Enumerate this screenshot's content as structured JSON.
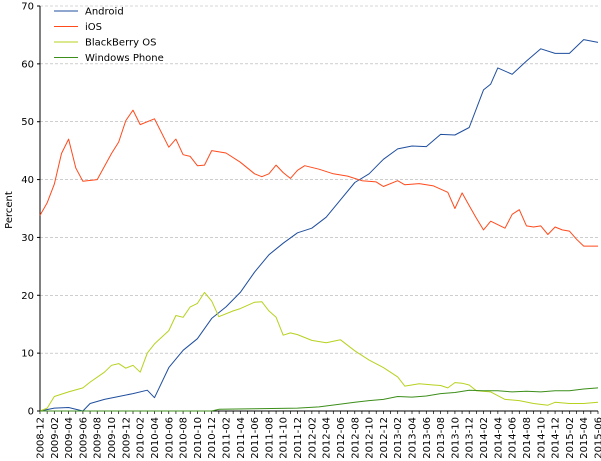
{
  "chart_data": {
    "type": "line",
    "ylabel": "Percent",
    "ylim": [
      0,
      70
    ],
    "yticks": [
      0,
      10,
      20,
      30,
      40,
      50,
      60,
      70
    ],
    "grid": "horizontal dashed",
    "legend_position": "top-left",
    "x_tick_labels": [
      "2008-12",
      "2009-02",
      "2009-04",
      "2009-06",
      "2009-08",
      "2009-10",
      "2009-12",
      "2010-02",
      "2010-04",
      "2010-06",
      "2010-08",
      "2010-10",
      "2010-12",
      "2011-02",
      "2011-04",
      "2011-06",
      "2011-08",
      "2011-10",
      "2011-12",
      "2012-02",
      "2012-04",
      "2012-06",
      "2012-08",
      "2012-10",
      "2012-12",
      "2013-02",
      "2013-04",
      "2013-06",
      "2013-08",
      "2013-10",
      "2013-12",
      "2014-02",
      "2014-04",
      "2014-06",
      "2014-08",
      "2014-10",
      "2014-12",
      "2015-02",
      "2015-04",
      "2015-06"
    ],
    "x_range": [
      "2008-12",
      "2015-06"
    ],
    "series": [
      {
        "name": "Android",
        "color": "#1f4e9e",
        "points": [
          [
            "2008-12",
            0.0
          ],
          [
            "2009-02",
            0.5
          ],
          [
            "2009-04",
            0.6
          ],
          [
            "2009-06",
            0.0
          ],
          [
            "2009-07",
            1.3
          ],
          [
            "2009-09",
            2.0
          ],
          [
            "2009-11",
            2.5
          ],
          [
            "2010-01",
            3.0
          ],
          [
            "2010-03",
            3.6
          ],
          [
            "2010-04",
            2.3
          ],
          [
            "2010-06",
            7.5
          ],
          [
            "2010-08",
            10.5
          ],
          [
            "2010-10",
            12.5
          ],
          [
            "2010-12",
            16.0
          ],
          [
            "2011-02",
            18.0
          ],
          [
            "2011-04",
            20.5
          ],
          [
            "2011-06",
            24.0
          ],
          [
            "2011-08",
            27.0
          ],
          [
            "2011-10",
            29.0
          ],
          [
            "2011-12",
            30.8
          ],
          [
            "2012-02",
            31.6
          ],
          [
            "2012-04",
            33.5
          ],
          [
            "2012-06",
            36.5
          ],
          [
            "2012-08",
            39.5
          ],
          [
            "2012-10",
            41.0
          ],
          [
            "2012-12",
            43.5
          ],
          [
            "2013-02",
            45.3
          ],
          [
            "2013-04",
            45.8
          ],
          [
            "2013-06",
            45.7
          ],
          [
            "2013-08",
            47.8
          ],
          [
            "2013-10",
            47.7
          ],
          [
            "2013-12",
            49.0
          ],
          [
            "2014-02",
            55.5
          ],
          [
            "2014-03",
            56.5
          ],
          [
            "2014-04",
            59.3
          ],
          [
            "2014-06",
            58.2
          ],
          [
            "2014-08",
            60.5
          ],
          [
            "2014-10",
            62.6
          ],
          [
            "2014-12",
            61.8
          ],
          [
            "2015-02",
            61.8
          ],
          [
            "2015-04",
            64.2
          ],
          [
            "2015-06",
            63.7
          ]
        ]
      },
      {
        "name": "iOS",
        "color": "#ff4a1c",
        "points": [
          [
            "2008-12",
            33.8
          ],
          [
            "2009-01",
            36.0
          ],
          [
            "2009-02",
            39.2
          ],
          [
            "2009-03",
            44.5
          ],
          [
            "2009-04",
            47.0
          ],
          [
            "2009-05",
            42.0
          ],
          [
            "2009-06",
            39.7
          ],
          [
            "2009-08",
            40.0
          ],
          [
            "2009-10",
            44.5
          ],
          [
            "2009-11",
            46.5
          ],
          [
            "2009-12",
            50.2
          ],
          [
            "2010-01",
            52.0
          ],
          [
            "2010-02",
            49.5
          ],
          [
            "2010-04",
            50.5
          ],
          [
            "2010-06",
            45.6
          ],
          [
            "2010-07",
            47.0
          ],
          [
            "2010-08",
            44.3
          ],
          [
            "2010-09",
            44.0
          ],
          [
            "2010-10",
            42.4
          ],
          [
            "2010-11",
            42.5
          ],
          [
            "2010-12",
            45.0
          ],
          [
            "2011-02",
            44.6
          ],
          [
            "2011-04",
            43.0
          ],
          [
            "2011-06",
            41.0
          ],
          [
            "2011-07",
            40.5
          ],
          [
            "2011-08",
            41.0
          ],
          [
            "2011-09",
            42.5
          ],
          [
            "2011-10",
            41.2
          ],
          [
            "2011-11",
            40.2
          ],
          [
            "2011-12",
            41.6
          ],
          [
            "2012-01",
            42.4
          ],
          [
            "2012-03",
            41.8
          ],
          [
            "2012-05",
            41.0
          ],
          [
            "2012-07",
            40.6
          ],
          [
            "2012-09",
            39.8
          ],
          [
            "2012-11",
            39.6
          ],
          [
            "2012-12",
            38.8
          ],
          [
            "2013-02",
            39.8
          ],
          [
            "2013-03",
            39.1
          ],
          [
            "2013-05",
            39.3
          ],
          [
            "2013-07",
            38.9
          ],
          [
            "2013-09",
            37.8
          ],
          [
            "2013-10",
            35.0
          ],
          [
            "2013-11",
            37.7
          ],
          [
            "2013-12",
            35.5
          ],
          [
            "2014-01",
            33.3
          ],
          [
            "2014-02",
            31.3
          ],
          [
            "2014-03",
            32.8
          ],
          [
            "2014-05",
            31.6
          ],
          [
            "2014-06",
            34.0
          ],
          [
            "2014-07",
            34.8
          ],
          [
            "2014-08",
            32.0
          ],
          [
            "2014-09",
            31.8
          ],
          [
            "2014-10",
            32.0
          ],
          [
            "2014-11",
            30.5
          ],
          [
            "2014-12",
            31.8
          ],
          [
            "2015-01",
            31.3
          ],
          [
            "2015-02",
            31.1
          ],
          [
            "2015-03",
            29.7
          ],
          [
            "2015-04",
            28.5
          ],
          [
            "2015-06",
            28.5
          ]
        ]
      },
      {
        "name": "BlackBerry OS",
        "color": "#b8d11e",
        "points": [
          [
            "2008-12",
            0.0
          ],
          [
            "2009-01",
            0.5
          ],
          [
            "2009-02",
            2.5
          ],
          [
            "2009-04",
            3.3
          ],
          [
            "2009-06",
            4.0
          ],
          [
            "2009-07",
            5.0
          ],
          [
            "2009-09",
            6.7
          ],
          [
            "2009-10",
            7.9
          ],
          [
            "2009-11",
            8.2
          ],
          [
            "2009-12",
            7.4
          ],
          [
            "2010-01",
            7.9
          ],
          [
            "2010-02",
            6.7
          ],
          [
            "2010-03",
            10.0
          ],
          [
            "2010-04",
            11.6
          ],
          [
            "2010-06",
            13.9
          ],
          [
            "2010-07",
            16.5
          ],
          [
            "2010-08",
            16.2
          ],
          [
            "2010-09",
            18.0
          ],
          [
            "2010-10",
            18.6
          ],
          [
            "2010-11",
            20.5
          ],
          [
            "2010-12",
            19.0
          ],
          [
            "2011-01",
            16.3
          ],
          [
            "2011-03",
            17.3
          ],
          [
            "2011-04",
            17.7
          ],
          [
            "2011-06",
            18.8
          ],
          [
            "2011-07",
            18.9
          ],
          [
            "2011-08",
            17.3
          ],
          [
            "2011-09",
            16.2
          ],
          [
            "2011-10",
            13.1
          ],
          [
            "2011-11",
            13.5
          ],
          [
            "2011-12",
            13.2
          ],
          [
            "2012-02",
            12.2
          ],
          [
            "2012-04",
            11.8
          ],
          [
            "2012-06",
            12.3
          ],
          [
            "2012-08",
            10.4
          ],
          [
            "2012-10",
            8.8
          ],
          [
            "2012-12",
            7.5
          ],
          [
            "2013-02",
            5.9
          ],
          [
            "2013-03",
            4.3
          ],
          [
            "2013-05",
            4.7
          ],
          [
            "2013-07",
            4.5
          ],
          [
            "2013-08",
            4.4
          ],
          [
            "2013-09",
            4.0
          ],
          [
            "2013-10",
            4.9
          ],
          [
            "2013-11",
            4.8
          ],
          [
            "2013-12",
            4.5
          ],
          [
            "2014-01",
            3.5
          ],
          [
            "2014-03",
            3.3
          ],
          [
            "2014-05",
            2.0
          ],
          [
            "2014-07",
            1.8
          ],
          [
            "2014-09",
            1.3
          ],
          [
            "2014-11",
            1.0
          ],
          [
            "2014-12",
            1.5
          ],
          [
            "2015-02",
            1.3
          ],
          [
            "2015-04",
            1.3
          ],
          [
            "2015-06",
            1.5
          ]
        ]
      },
      {
        "name": "Windows Phone",
        "color": "#3c8e1a",
        "points": [
          [
            "2008-12",
            0.0
          ],
          [
            "2010-12",
            0.0
          ],
          [
            "2011-01",
            0.3
          ],
          [
            "2011-06",
            0.4
          ],
          [
            "2011-12",
            0.5
          ],
          [
            "2012-03",
            0.7
          ],
          [
            "2012-06",
            1.2
          ],
          [
            "2012-08",
            1.5
          ],
          [
            "2012-10",
            1.8
          ],
          [
            "2012-12",
            2.0
          ],
          [
            "2013-02",
            2.5
          ],
          [
            "2013-04",
            2.4
          ],
          [
            "2013-06",
            2.6
          ],
          [
            "2013-08",
            3.0
          ],
          [
            "2013-10",
            3.2
          ],
          [
            "2013-12",
            3.6
          ],
          [
            "2014-02",
            3.5
          ],
          [
            "2014-04",
            3.5
          ],
          [
            "2014-06",
            3.3
          ],
          [
            "2014-08",
            3.4
          ],
          [
            "2014-10",
            3.3
          ],
          [
            "2014-12",
            3.5
          ],
          [
            "2015-02",
            3.5
          ],
          [
            "2015-04",
            3.8
          ],
          [
            "2015-06",
            4.0
          ]
        ]
      }
    ]
  }
}
